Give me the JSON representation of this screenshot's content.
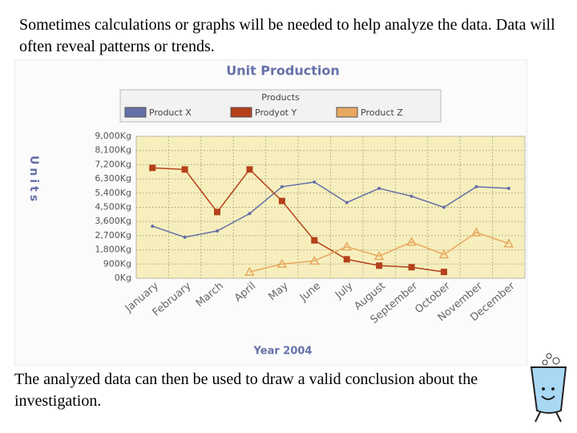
{
  "slide": {
    "text_top": "Sometimes calculations or graphs will be needed to help analyze the data. Data will often reveal patterns or trends.",
    "text_bottom": "The analyzed data can then be used to draw a valid conclusion about the investigation."
  },
  "chart_data": {
    "type": "line",
    "title": "Unit Production",
    "legend_title": "Products",
    "ylabel": "Units",
    "xlabel": "Year 2004",
    "categories": [
      "January",
      "February",
      "March",
      "April",
      "May",
      "June",
      "July",
      "August",
      "September",
      "October",
      "November",
      "December"
    ],
    "series": [
      {
        "name": "Product X",
        "color": "#6670a8",
        "marker": "none",
        "values": [
          3300,
          2600,
          3000,
          4100,
          5800,
          6100,
          4800,
          5700,
          5200,
          4500,
          5800,
          5700
        ]
      },
      {
        "name": "Prodyot Y",
        "color": "#b5401a",
        "marker": "square",
        "values": [
          7000,
          6900,
          4200,
          6900,
          4900,
          2400,
          1200,
          800,
          700,
          400,
          null,
          null
        ]
      },
      {
        "name": "Product Z",
        "color": "#e8a860",
        "marker": "triangle",
        "values": [
          null,
          null,
          null,
          400,
          900,
          1100,
          2000,
          1400,
          2300,
          1500,
          2900,
          2200
        ]
      }
    ],
    "ylim": [
      0,
      9000
    ],
    "yticks": [
      {
        "value": 0,
        "label": "0Kg"
      },
      {
        "value": 900,
        "label": "900Kg"
      },
      {
        "value": 1800,
        "label": "1,800Kg"
      },
      {
        "value": 2700,
        "label": "2,700Kg"
      },
      {
        "value": 3600,
        "label": "3,600Kg"
      },
      {
        "value": 4500,
        "label": "4,500Kg"
      },
      {
        "value": 5400,
        "label": "5,400Kg"
      },
      {
        "value": 6300,
        "label": "6,300Kg"
      },
      {
        "value": 7200,
        "label": "7,200Kg"
      },
      {
        "value": 8100,
        "label": "8,100Kg"
      },
      {
        "value": 9000,
        "label": "9,000Kg"
      }
    ],
    "grid": true
  }
}
